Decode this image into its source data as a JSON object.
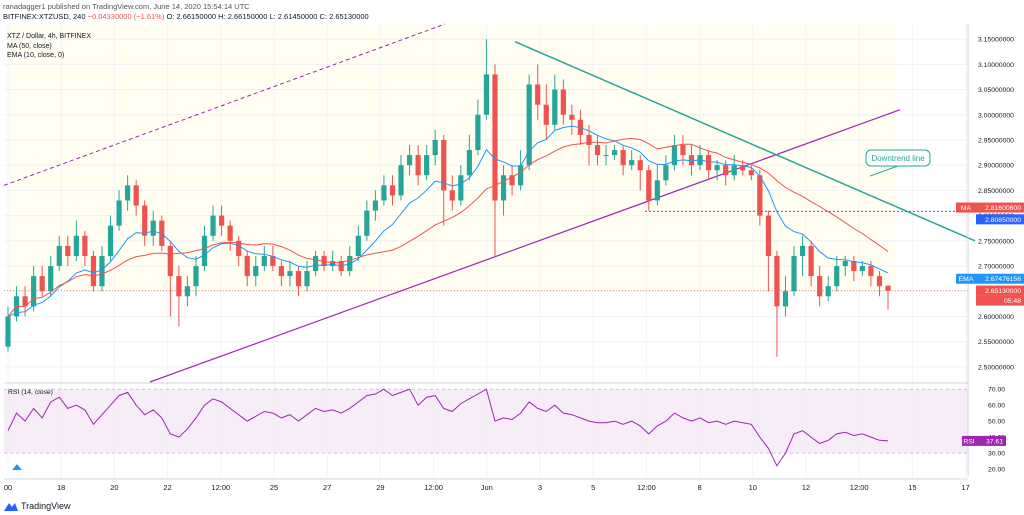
{
  "header": {
    "line1": "ranadagger1 published on TradingView.com, June 14, 2020 15:54:14 UTC",
    "symbol_line": "BITFINEX:XTZUSD, 240",
    "change": "−0.04330000 (−1.61%)",
    "ohlc": "O: 2.66150000  H: 2.66150000  L: 2.61450000  C: 2.65130000"
  },
  "legend": {
    "title": "XTZ / Dollar, 4h, BITFINEX",
    "ma": "MA (50, close)",
    "ema": "EMA (10, close, 0)"
  },
  "rsi_label": "RSI (14, close)",
  "annotation": "Downtrend line",
  "brand": "TradingView",
  "colors": {
    "up": "#26a69a",
    "down": "#ef5350",
    "ema": "#2196f3",
    "ma": "#ef5350",
    "downtrend": "#26a69a",
    "channel": "#9c27b0",
    "rsi": "#9c27b0"
  },
  "chart_data": {
    "type": "candlestick",
    "price_axis": {
      "ylim": [
        2.47,
        3.18
      ],
      "ticks": [
        "3.15000000",
        "3.10000000",
        "3.05000000",
        "3.00000000",
        "2.95000000",
        "2.90000000",
        "2.85000000",
        "2.80000000",
        "2.75000000",
        "2.70000000",
        "2.65000000",
        "2.60000000",
        "2.55000000",
        "2.50000000"
      ]
    },
    "price_badges": [
      {
        "label": "MA",
        "value": "2.81600600",
        "color": "#ef5350"
      },
      {
        "label": "",
        "value": "2.80850000",
        "color": "#2962ff"
      },
      {
        "label": "EMA",
        "value": "2.67476156",
        "color": "#2196f3"
      },
      {
        "label": "",
        "value": "2.65130000",
        "color": "#ef5350"
      },
      {
        "label": "",
        "value": "05:48",
        "color": "#ef5350"
      }
    ],
    "x_ticks": [
      "00",
      "18",
      "20",
      "22",
      "12:00",
      "25",
      "27",
      "29",
      "12:00",
      "Jun",
      "3",
      "5",
      "12:00",
      "8",
      "10",
      "12",
      "12:00",
      "15",
      "17"
    ],
    "candles": [
      [
        2.54,
        2.6,
        2.53,
        2.62
      ],
      [
        2.6,
        2.64,
        2.59,
        2.66
      ],
      [
        2.64,
        2.62,
        2.6,
        2.66
      ],
      [
        2.62,
        2.68,
        2.61,
        2.7
      ],
      [
        2.68,
        2.65,
        2.64,
        2.7
      ],
      [
        2.65,
        2.7,
        2.64,
        2.72
      ],
      [
        2.7,
        2.74,
        2.69,
        2.76
      ],
      [
        2.74,
        2.72,
        2.7,
        2.76
      ],
      [
        2.72,
        2.76,
        2.71,
        2.79
      ],
      [
        2.76,
        2.72,
        2.7,
        2.77
      ],
      [
        2.72,
        2.66,
        2.65,
        2.73
      ],
      [
        2.66,
        2.72,
        2.65,
        2.74
      ],
      [
        2.72,
        2.78,
        2.71,
        2.8
      ],
      [
        2.78,
        2.83,
        2.77,
        2.85
      ],
      [
        2.83,
        2.86,
        2.81,
        2.88
      ],
      [
        2.86,
        2.82,
        2.8,
        2.87
      ],
      [
        2.82,
        2.76,
        2.74,
        2.83
      ],
      [
        2.76,
        2.79,
        2.74,
        2.81
      ],
      [
        2.79,
        2.74,
        2.73,
        2.8
      ],
      [
        2.74,
        2.68,
        2.6,
        2.75
      ],
      [
        2.68,
        2.64,
        2.58,
        2.7
      ],
      [
        2.64,
        2.66,
        2.62,
        2.68
      ],
      [
        2.66,
        2.7,
        2.64,
        2.72
      ],
      [
        2.7,
        2.76,
        2.69,
        2.78
      ],
      [
        2.76,
        2.8,
        2.75,
        2.82
      ],
      [
        2.8,
        2.78,
        2.76,
        2.82
      ],
      [
        2.78,
        2.75,
        2.73,
        2.79
      ],
      [
        2.75,
        2.72,
        2.7,
        2.76
      ],
      [
        2.72,
        2.68,
        2.66,
        2.73
      ],
      [
        2.68,
        2.7,
        2.66,
        2.72
      ],
      [
        2.7,
        2.72,
        2.69,
        2.74
      ],
      [
        2.72,
        2.7,
        2.69,
        2.74
      ],
      [
        2.7,
        2.68,
        2.66,
        2.71
      ],
      [
        2.68,
        2.69,
        2.66,
        2.71
      ],
      [
        2.69,
        2.66,
        2.64,
        2.7
      ],
      [
        2.66,
        2.69,
        2.65,
        2.71
      ],
      [
        2.69,
        2.72,
        2.68,
        2.73
      ],
      [
        2.72,
        2.7,
        2.69,
        2.73
      ],
      [
        2.7,
        2.71,
        2.69,
        2.73
      ],
      [
        2.71,
        2.69,
        2.68,
        2.72
      ],
      [
        2.69,
        2.72,
        2.68,
        2.74
      ],
      [
        2.72,
        2.76,
        2.71,
        2.78
      ],
      [
        2.76,
        2.81,
        2.75,
        2.83
      ],
      [
        2.81,
        2.83,
        2.79,
        2.85
      ],
      [
        2.83,
        2.86,
        2.82,
        2.88
      ],
      [
        2.86,
        2.84,
        2.82,
        2.88
      ],
      [
        2.84,
        2.9,
        2.83,
        2.92
      ],
      [
        2.9,
        2.92,
        2.88,
        2.94
      ],
      [
        2.92,
        2.88,
        2.86,
        2.94
      ],
      [
        2.88,
        2.92,
        2.87,
        2.94
      ],
      [
        2.92,
        2.95,
        2.9,
        2.97
      ],
      [
        2.95,
        2.85,
        2.78,
        2.96
      ],
      [
        2.85,
        2.83,
        2.81,
        2.88
      ],
      [
        2.83,
        2.88,
        2.82,
        2.9
      ],
      [
        2.88,
        2.93,
        2.87,
        2.96
      ],
      [
        2.93,
        3.0,
        2.92,
        3.03
      ],
      [
        3.0,
        3.08,
        2.99,
        3.15
      ],
      [
        3.08,
        2.83,
        2.72,
        3.1
      ],
      [
        2.83,
        2.88,
        2.8,
        2.9
      ],
      [
        2.88,
        2.86,
        2.84,
        2.9
      ],
      [
        2.86,
        2.9,
        2.85,
        2.93
      ],
      [
        2.9,
        3.06,
        2.89,
        3.08
      ],
      [
        3.06,
        3.02,
        2.99,
        3.1
      ],
      [
        3.02,
        2.98,
        2.95,
        3.06
      ],
      [
        2.98,
        3.05,
        2.97,
        3.08
      ],
      [
        3.05,
        3.0,
        2.98,
        3.07
      ],
      [
        3.0,
        2.99,
        2.96,
        3.02
      ],
      [
        2.99,
        2.96,
        2.94,
        3.01
      ],
      [
        2.96,
        2.94,
        2.9,
        2.98
      ],
      [
        2.94,
        2.92,
        2.9,
        2.96
      ],
      [
        2.92,
        2.92,
        2.9,
        2.94
      ],
      [
        2.92,
        2.93,
        2.91,
        2.94
      ],
      [
        2.93,
        2.9,
        2.88,
        2.94
      ],
      [
        2.9,
        2.91,
        2.89,
        2.93
      ],
      [
        2.91,
        2.89,
        2.85,
        2.92
      ],
      [
        2.89,
        2.83,
        2.81,
        2.9
      ],
      [
        2.83,
        2.87,
        2.82,
        2.9
      ],
      [
        2.87,
        2.9,
        2.86,
        2.92
      ],
      [
        2.9,
        2.94,
        2.89,
        2.96
      ],
      [
        2.94,
        2.92,
        2.9,
        2.96
      ],
      [
        2.92,
        2.9,
        2.88,
        2.94
      ],
      [
        2.9,
        2.92,
        2.89,
        2.94
      ],
      [
        2.92,
        2.89,
        2.87,
        2.93
      ],
      [
        2.89,
        2.9,
        2.87,
        2.91
      ],
      [
        2.9,
        2.88,
        2.86,
        2.91
      ],
      [
        2.88,
        2.9,
        2.87,
        2.92
      ],
      [
        2.9,
        2.89,
        2.88,
        2.91
      ],
      [
        2.89,
        2.88,
        2.87,
        2.9
      ],
      [
        2.88,
        2.8,
        2.78,
        2.89
      ],
      [
        2.8,
        2.72,
        2.65,
        2.81
      ],
      [
        2.72,
        2.62,
        2.52,
        2.73
      ],
      [
        2.62,
        2.65,
        2.6,
        2.68
      ],
      [
        2.65,
        2.72,
        2.64,
        2.74
      ],
      [
        2.72,
        2.74,
        2.68,
        2.76
      ],
      [
        2.74,
        2.68,
        2.66,
        2.75
      ],
      [
        2.68,
        2.64,
        2.62,
        2.7
      ],
      [
        2.64,
        2.66,
        2.63,
        2.68
      ],
      [
        2.66,
        2.7,
        2.65,
        2.72
      ],
      [
        2.7,
        2.71,
        2.68,
        2.72
      ],
      [
        2.71,
        2.69,
        2.67,
        2.72
      ],
      [
        2.69,
        2.7,
        2.68,
        2.71
      ],
      [
        2.7,
        2.68,
        2.66,
        2.71
      ],
      [
        2.68,
        2.66,
        2.64,
        2.69
      ],
      [
        2.661,
        2.651,
        2.614,
        2.662
      ]
    ],
    "indicators": [
      {
        "name": "EMA (10, close, 0)",
        "last": 2.67476156
      },
      {
        "name": "MA (50, close)",
        "last": 2.816006
      }
    ],
    "rsi": {
      "ylim": [
        15,
        72
      ],
      "ticks": [
        "70.00",
        "60.00",
        "50.00",
        "40.00",
        "30.00",
        "20.00"
      ],
      "last": "37.61",
      "values": [
        44,
        55,
        50,
        58,
        52,
        62,
        65,
        58,
        60,
        57,
        48,
        54,
        60,
        66,
        68,
        60,
        54,
        57,
        52,
        42,
        40,
        45,
        52,
        60,
        64,
        62,
        58,
        54,
        50,
        53,
        56,
        55,
        52,
        54,
        50,
        54,
        58,
        56,
        57,
        55,
        58,
        62,
        66,
        67,
        70,
        66,
        68,
        70,
        60,
        65,
        66,
        58,
        56,
        61,
        64,
        67,
        70,
        50,
        52,
        51,
        55,
        62,
        58,
        56,
        60,
        55,
        54,
        52,
        50,
        49,
        49,
        50,
        48,
        50,
        47,
        42,
        47,
        50,
        55,
        52,
        50,
        52,
        49,
        50,
        48,
        50,
        49,
        48,
        40,
        33,
        22,
        30,
        42,
        44,
        40,
        36,
        38,
        42,
        43,
        41,
        42,
        40,
        38,
        37.61
      ]
    },
    "annotations": [
      "Downtrend line"
    ]
  }
}
